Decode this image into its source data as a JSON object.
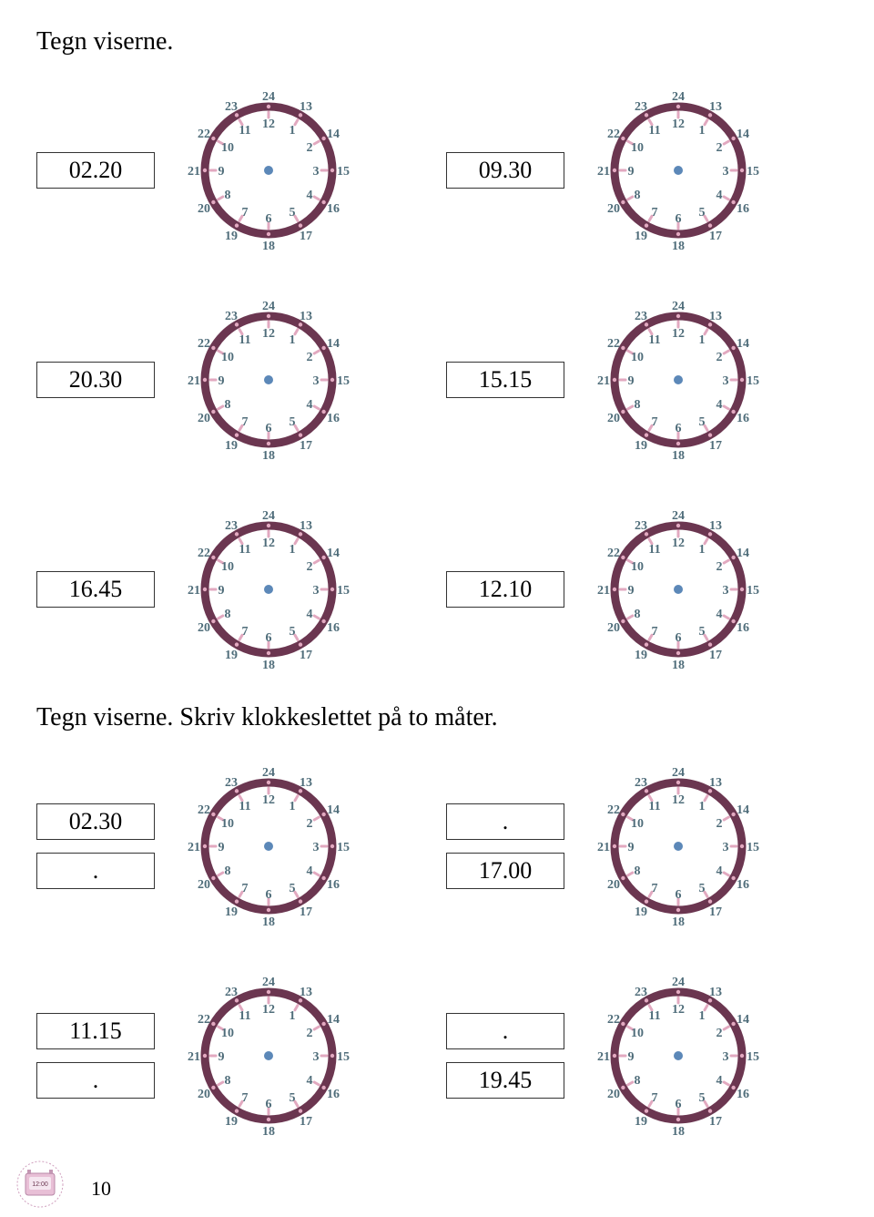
{
  "heading1": "Tegn viserne.",
  "heading2": "Tegn viserne. Skriv klokkeslettet på to måter.",
  "page_number": "10",
  "clock": {
    "inner_labels": [
      "12",
      "1",
      "2",
      "3",
      "4",
      "5",
      "6",
      "7",
      "8",
      "9",
      "10",
      "11"
    ],
    "outer_labels": [
      "24",
      "13",
      "14",
      "15",
      "16",
      "17",
      "18",
      "19",
      "20",
      "21",
      "22",
      "23"
    ],
    "ring_color": "#6b3650",
    "ring_width": 9,
    "face_color": "#ffffff",
    "tick_color": "#e2a9c0",
    "center_dot_color": "#5c88b8",
    "number_color": "#4f6d7a",
    "inner_label_fontsize": 14,
    "outer_label_fontsize": 14,
    "radius_outer": 70,
    "radius_inner_label": 52,
    "radius_outer_label": 82,
    "tick_radius_in": 58,
    "tick_radius_out": 64
  },
  "section1": [
    [
      {
        "time": "02.20"
      },
      {
        "time": "09.30"
      }
    ],
    [
      {
        "time": "20.30"
      },
      {
        "time": "15.15"
      }
    ],
    [
      {
        "time": "16.45"
      },
      {
        "time": "12.10"
      }
    ]
  ],
  "section2": [
    [
      {
        "t1": "02.30",
        "t2": "."
      },
      {
        "t1": ".",
        "t2": "17.00"
      }
    ],
    [
      {
        "t1": "11.15",
        "t2": "."
      },
      {
        "t1": ".",
        "t2": "19.45"
      }
    ]
  ],
  "footer_icon": {
    "bg": "#e8bfd6",
    "border": "#d09fbe",
    "screen": "#f5e6f0",
    "text": "12:00"
  }
}
